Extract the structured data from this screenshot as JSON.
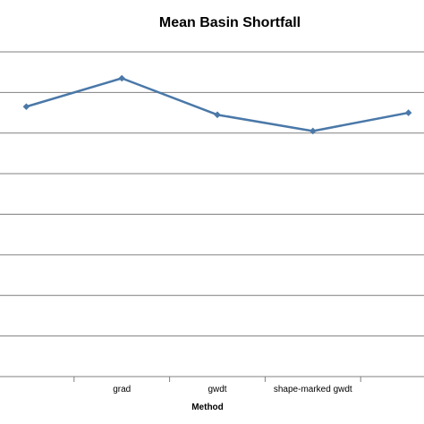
{
  "chart_data": {
    "type": "line",
    "title": "Mean Basin Shortfall",
    "xlabel": "Method",
    "ylabel": "",
    "categories": [
      "",
      "grad",
      "gwdt",
      "shape-marked gwdt",
      ""
    ],
    "series": [
      {
        "values": [
          6.65,
          7.35,
          6.45,
          6.05,
          6.5
        ]
      }
    ],
    "ylim": [
      0,
      8
    ],
    "ytick_step": 1,
    "grid": true,
    "legend": "none",
    "colors": {
      "line": "#4a78a8",
      "grid": "#808080",
      "axis": "#808080"
    }
  }
}
